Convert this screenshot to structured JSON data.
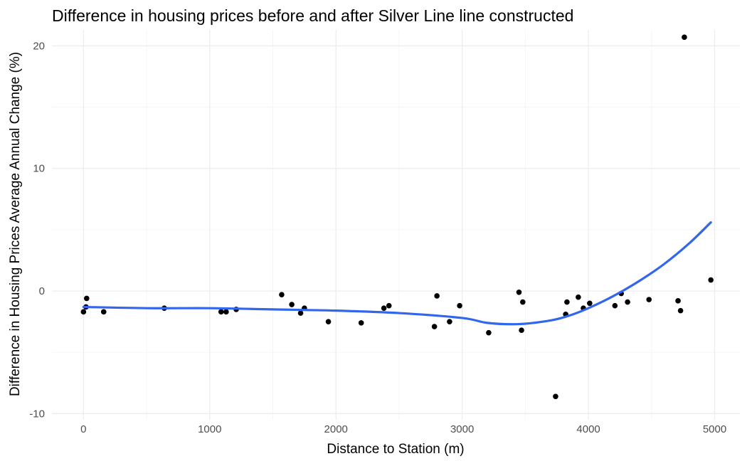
{
  "chart_data": {
    "type": "scatter",
    "title": "Difference in housing prices before and after Silver Line line constructed",
    "xlabel": "Distance to Station (m)",
    "ylabel": "Difference in Housing Prices Average Annual Change (%)",
    "xlim": [
      -250,
      5200
    ],
    "ylim": [
      -10.5,
      21.3
    ],
    "x_ticks": [
      0,
      1000,
      2000,
      3000,
      4000,
      5000
    ],
    "x_tick_labels": [
      "0",
      "1000",
      "2000",
      "3000",
      "4000",
      "5000"
    ],
    "y_ticks": [
      -10,
      0,
      10,
      20
    ],
    "y_tick_labels": [
      "-10",
      "0",
      "10",
      "20"
    ],
    "grid": true,
    "point_color": "#000000",
    "smooth_color": "#3366ee",
    "points": [
      {
        "x": 0,
        "y": -1.7
      },
      {
        "x": 20,
        "y": -1.3
      },
      {
        "x": 25,
        "y": -0.6
      },
      {
        "x": 160,
        "y": -1.7
      },
      {
        "x": 640,
        "y": -1.4
      },
      {
        "x": 1090,
        "y": -1.7
      },
      {
        "x": 1130,
        "y": -1.7
      },
      {
        "x": 1210,
        "y": -1.5
      },
      {
        "x": 1570,
        "y": -0.3
      },
      {
        "x": 1650,
        "y": -1.1
      },
      {
        "x": 1720,
        "y": -1.8
      },
      {
        "x": 1750,
        "y": -1.4
      },
      {
        "x": 1940,
        "y": -2.5
      },
      {
        "x": 2200,
        "y": -2.6
      },
      {
        "x": 2380,
        "y": -1.4
      },
      {
        "x": 2420,
        "y": -1.2
      },
      {
        "x": 2780,
        "y": -2.9
      },
      {
        "x": 2800,
        "y": -0.4
      },
      {
        "x": 2900,
        "y": -2.5
      },
      {
        "x": 2980,
        "y": -1.2
      },
      {
        "x": 3210,
        "y": -3.4
      },
      {
        "x": 3450,
        "y": -0.1
      },
      {
        "x": 3470,
        "y": -3.2
      },
      {
        "x": 3480,
        "y": -0.9
      },
      {
        "x": 3740,
        "y": -8.6
      },
      {
        "x": 3820,
        "y": -1.9
      },
      {
        "x": 3830,
        "y": -0.9
      },
      {
        "x": 3920,
        "y": -0.5
      },
      {
        "x": 3960,
        "y": -1.4
      },
      {
        "x": 4010,
        "y": -1.0
      },
      {
        "x": 4210,
        "y": -1.2
      },
      {
        "x": 4260,
        "y": -0.2
      },
      {
        "x": 4310,
        "y": -0.9
      },
      {
        "x": 4480,
        "y": -0.7
      },
      {
        "x": 4710,
        "y": -0.8
      },
      {
        "x": 4730,
        "y": -1.6
      },
      {
        "x": 4760,
        "y": 20.7
      },
      {
        "x": 4970,
        "y": 0.9
      }
    ],
    "smooth_line": [
      {
        "x": 0,
        "y": -1.3
      },
      {
        "x": 500,
        "y": -1.4
      },
      {
        "x": 1000,
        "y": -1.4
      },
      {
        "x": 1500,
        "y": -1.5
      },
      {
        "x": 2000,
        "y": -1.6
      },
      {
        "x": 2500,
        "y": -1.8
      },
      {
        "x": 3000,
        "y": -2.2
      },
      {
        "x": 3200,
        "y": -2.6
      },
      {
        "x": 3450,
        "y": -2.7
      },
      {
        "x": 3700,
        "y": -2.4
      },
      {
        "x": 3850,
        "y": -2.0
      },
      {
        "x": 4000,
        "y": -1.4
      },
      {
        "x": 4200,
        "y": -0.4
      },
      {
        "x": 4400,
        "y": 0.8
      },
      {
        "x": 4600,
        "y": 2.2
      },
      {
        "x": 4800,
        "y": 3.9
      },
      {
        "x": 4970,
        "y": 5.6
      }
    ]
  }
}
